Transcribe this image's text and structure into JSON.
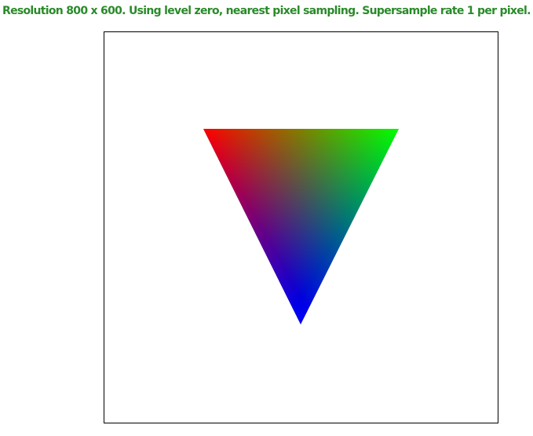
{
  "status": {
    "text": "Resolution 800 x 600. Using level zero, nearest pixel sampling. Supersample rate 1 per pixel.",
    "color": "#2a8a2a"
  },
  "scene": {
    "background": "#ffffff",
    "border_color": "#000000",
    "triangle": {
      "vertex_colors": {
        "top_left": "#ff0000",
        "top_right": "#00ff00",
        "bottom": "#0000ff"
      }
    }
  }
}
